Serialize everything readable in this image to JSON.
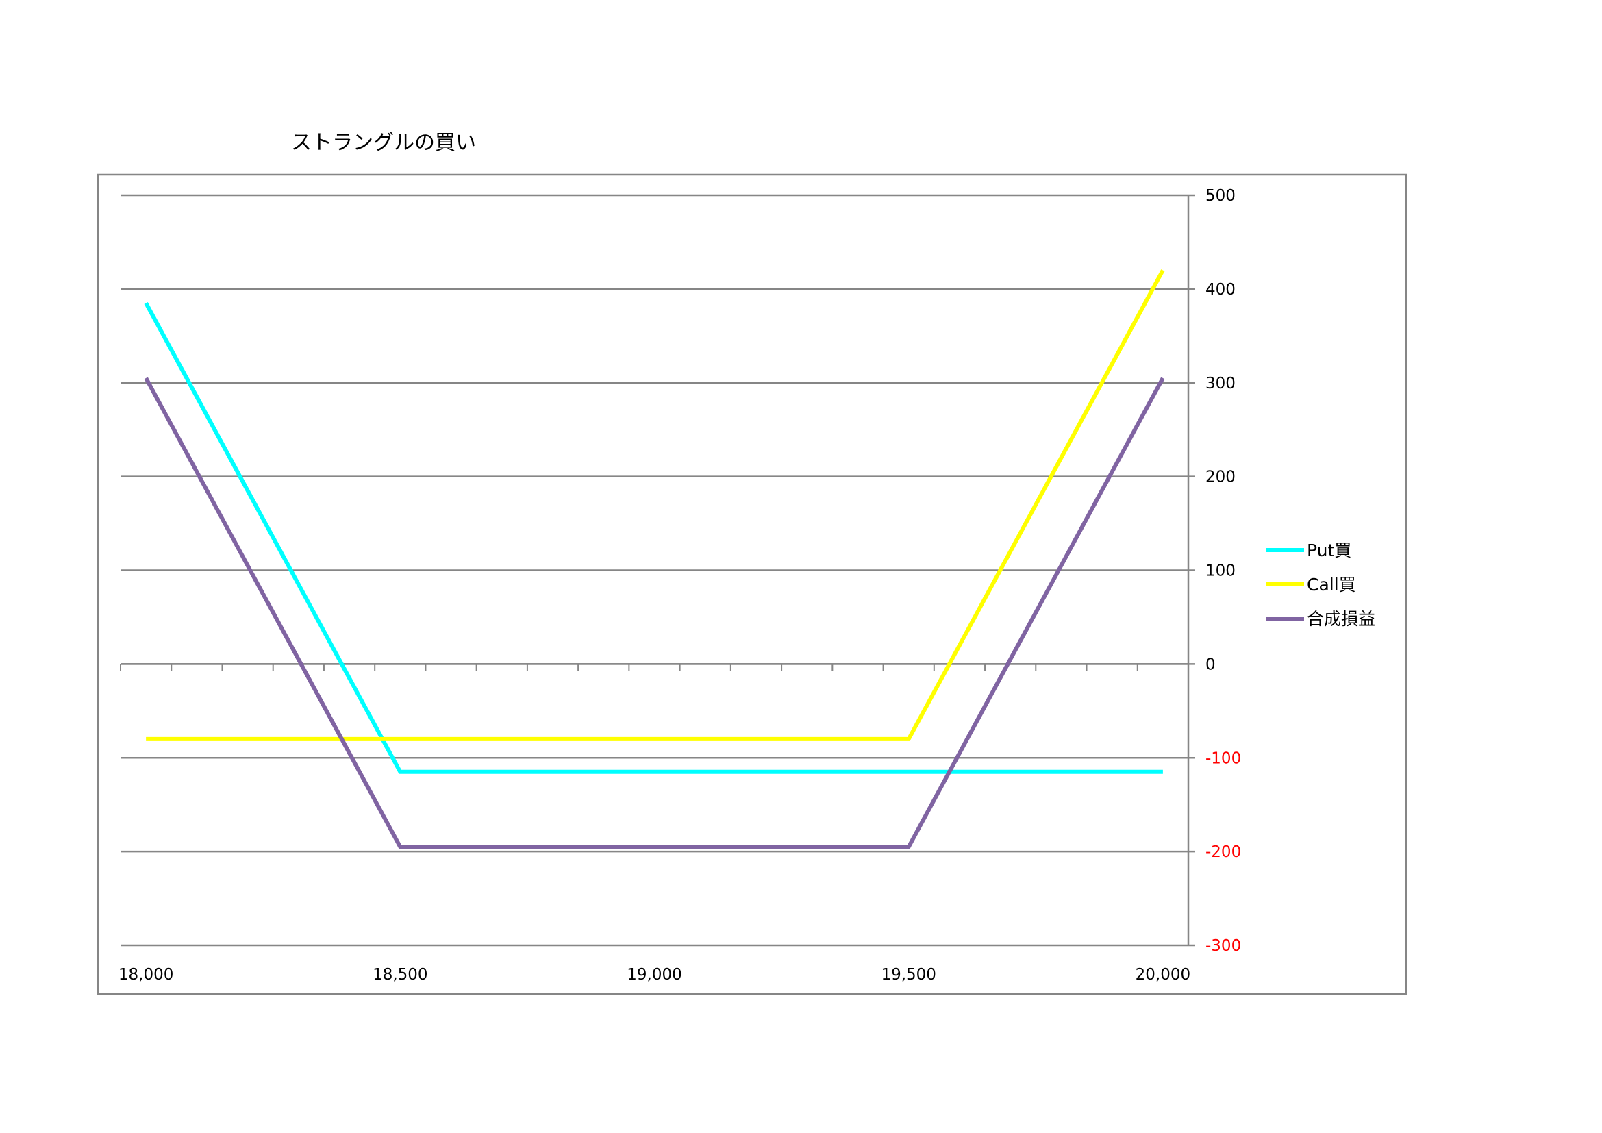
{
  "chart_data": {
    "type": "line",
    "title": "ストラングルの買い",
    "xlabel": "",
    "ylabel": "",
    "x": [
      18000,
      18500,
      19500,
      20000
    ],
    "x_ticks": [
      18000,
      18500,
      19000,
      19500,
      20000
    ],
    "x_tick_labels": [
      "18,000",
      "18,500",
      "19,000",
      "19,500",
      "20,000"
    ],
    "xlim": [
      17950,
      20050
    ],
    "ylim": [
      -300,
      500
    ],
    "y_ticks": [
      500,
      400,
      300,
      200,
      100,
      0,
      -100,
      -200,
      -300
    ],
    "y_tick_labels": [
      "500",
      "400",
      "300",
      "200",
      "100",
      "0",
      "-100",
      "-200",
      "-300"
    ],
    "y_axis_position": "right",
    "negative_label_color": "#ff0000",
    "grid": true,
    "legend_position": "right",
    "series": [
      {
        "name": "Put買",
        "color": "#00ffff",
        "x": [
          18000,
          18500,
          20000
        ],
        "values": [
          385,
          -115,
          -115
        ]
      },
      {
        "name": "Call買",
        "color": "#ffff00",
        "x": [
          18000,
          19500,
          20000
        ],
        "values": [
          -80,
          -80,
          420
        ]
      },
      {
        "name": "合成損益",
        "color": "#8064a2",
        "x": [
          18000,
          18500,
          19500,
          20000
        ],
        "values": [
          305,
          -195,
          -195,
          305
        ]
      }
    ]
  }
}
